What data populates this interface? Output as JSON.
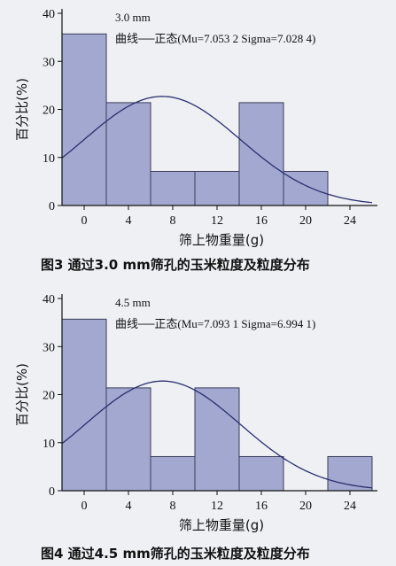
{
  "chart_data": [
    {
      "type": "bar",
      "subtype": "histogram-with-normal-curve",
      "annotation": "3.0 mm",
      "legend_text": "曲线──正态(Mu=7.053 2 Sigma=7.028 4)",
      "xlabel": "筛上物重量(g)",
      "ylabel": "百分比(%)",
      "caption": "图3   通过3.0 mm筛孔的玉米粒度及粒度分布",
      "xlim": [
        -2,
        26
      ],
      "ylim": [
        0,
        40
      ],
      "xticks": [
        0,
        4,
        8,
        12,
        16,
        20,
        24
      ],
      "yticks": [
        0,
        10,
        20,
        30,
        40
      ],
      "bins": [
        {
          "x0": -2,
          "x1": 2,
          "value": 35.7
        },
        {
          "x0": 2,
          "x1": 6,
          "value": 21.4
        },
        {
          "x0": 6,
          "x1": 10,
          "value": 7.1
        },
        {
          "x0": 10,
          "x1": 14,
          "value": 7.1
        },
        {
          "x0": 14,
          "x1": 18,
          "value": 21.4
        },
        {
          "x0": 18,
          "x1": 22,
          "value": 7.1
        }
      ],
      "normal_curve": {
        "mu": 7.0532,
        "sigma": 7.0284
      },
      "bar_color": "#a2a8cf",
      "curve_color": "#2a2f6e"
    },
    {
      "type": "bar",
      "subtype": "histogram-with-normal-curve",
      "annotation": "4.5 mm",
      "legend_text": "曲线──正态(Mu=7.093 1 Sigma=6.994 1)",
      "xlabel": "筛上物重量(g)",
      "ylabel": "百分比(%)",
      "caption": "图4   通过4.5 mm筛孔的玉米粒度及粒度分布",
      "xlim": [
        -2,
        26
      ],
      "ylim": [
        0,
        40
      ],
      "xticks": [
        0,
        4,
        8,
        12,
        16,
        20,
        24
      ],
      "yticks": [
        0,
        10,
        20,
        30,
        40
      ],
      "bins": [
        {
          "x0": -2,
          "x1": 2,
          "value": 35.7
        },
        {
          "x0": 2,
          "x1": 6,
          "value": 21.4
        },
        {
          "x0": 6,
          "x1": 10,
          "value": 7.1
        },
        {
          "x0": 10,
          "x1": 14,
          "value": 21.4
        },
        {
          "x0": 14,
          "x1": 18,
          "value": 7.1
        },
        {
          "x0": 18,
          "x1": 22,
          "value": 0
        },
        {
          "x0": 22,
          "x1": 26,
          "value": 7.1
        }
      ],
      "normal_curve": {
        "mu": 7.0931,
        "sigma": 6.9941
      },
      "bar_color": "#a2a8cf",
      "curve_color": "#2a2f6e"
    }
  ]
}
